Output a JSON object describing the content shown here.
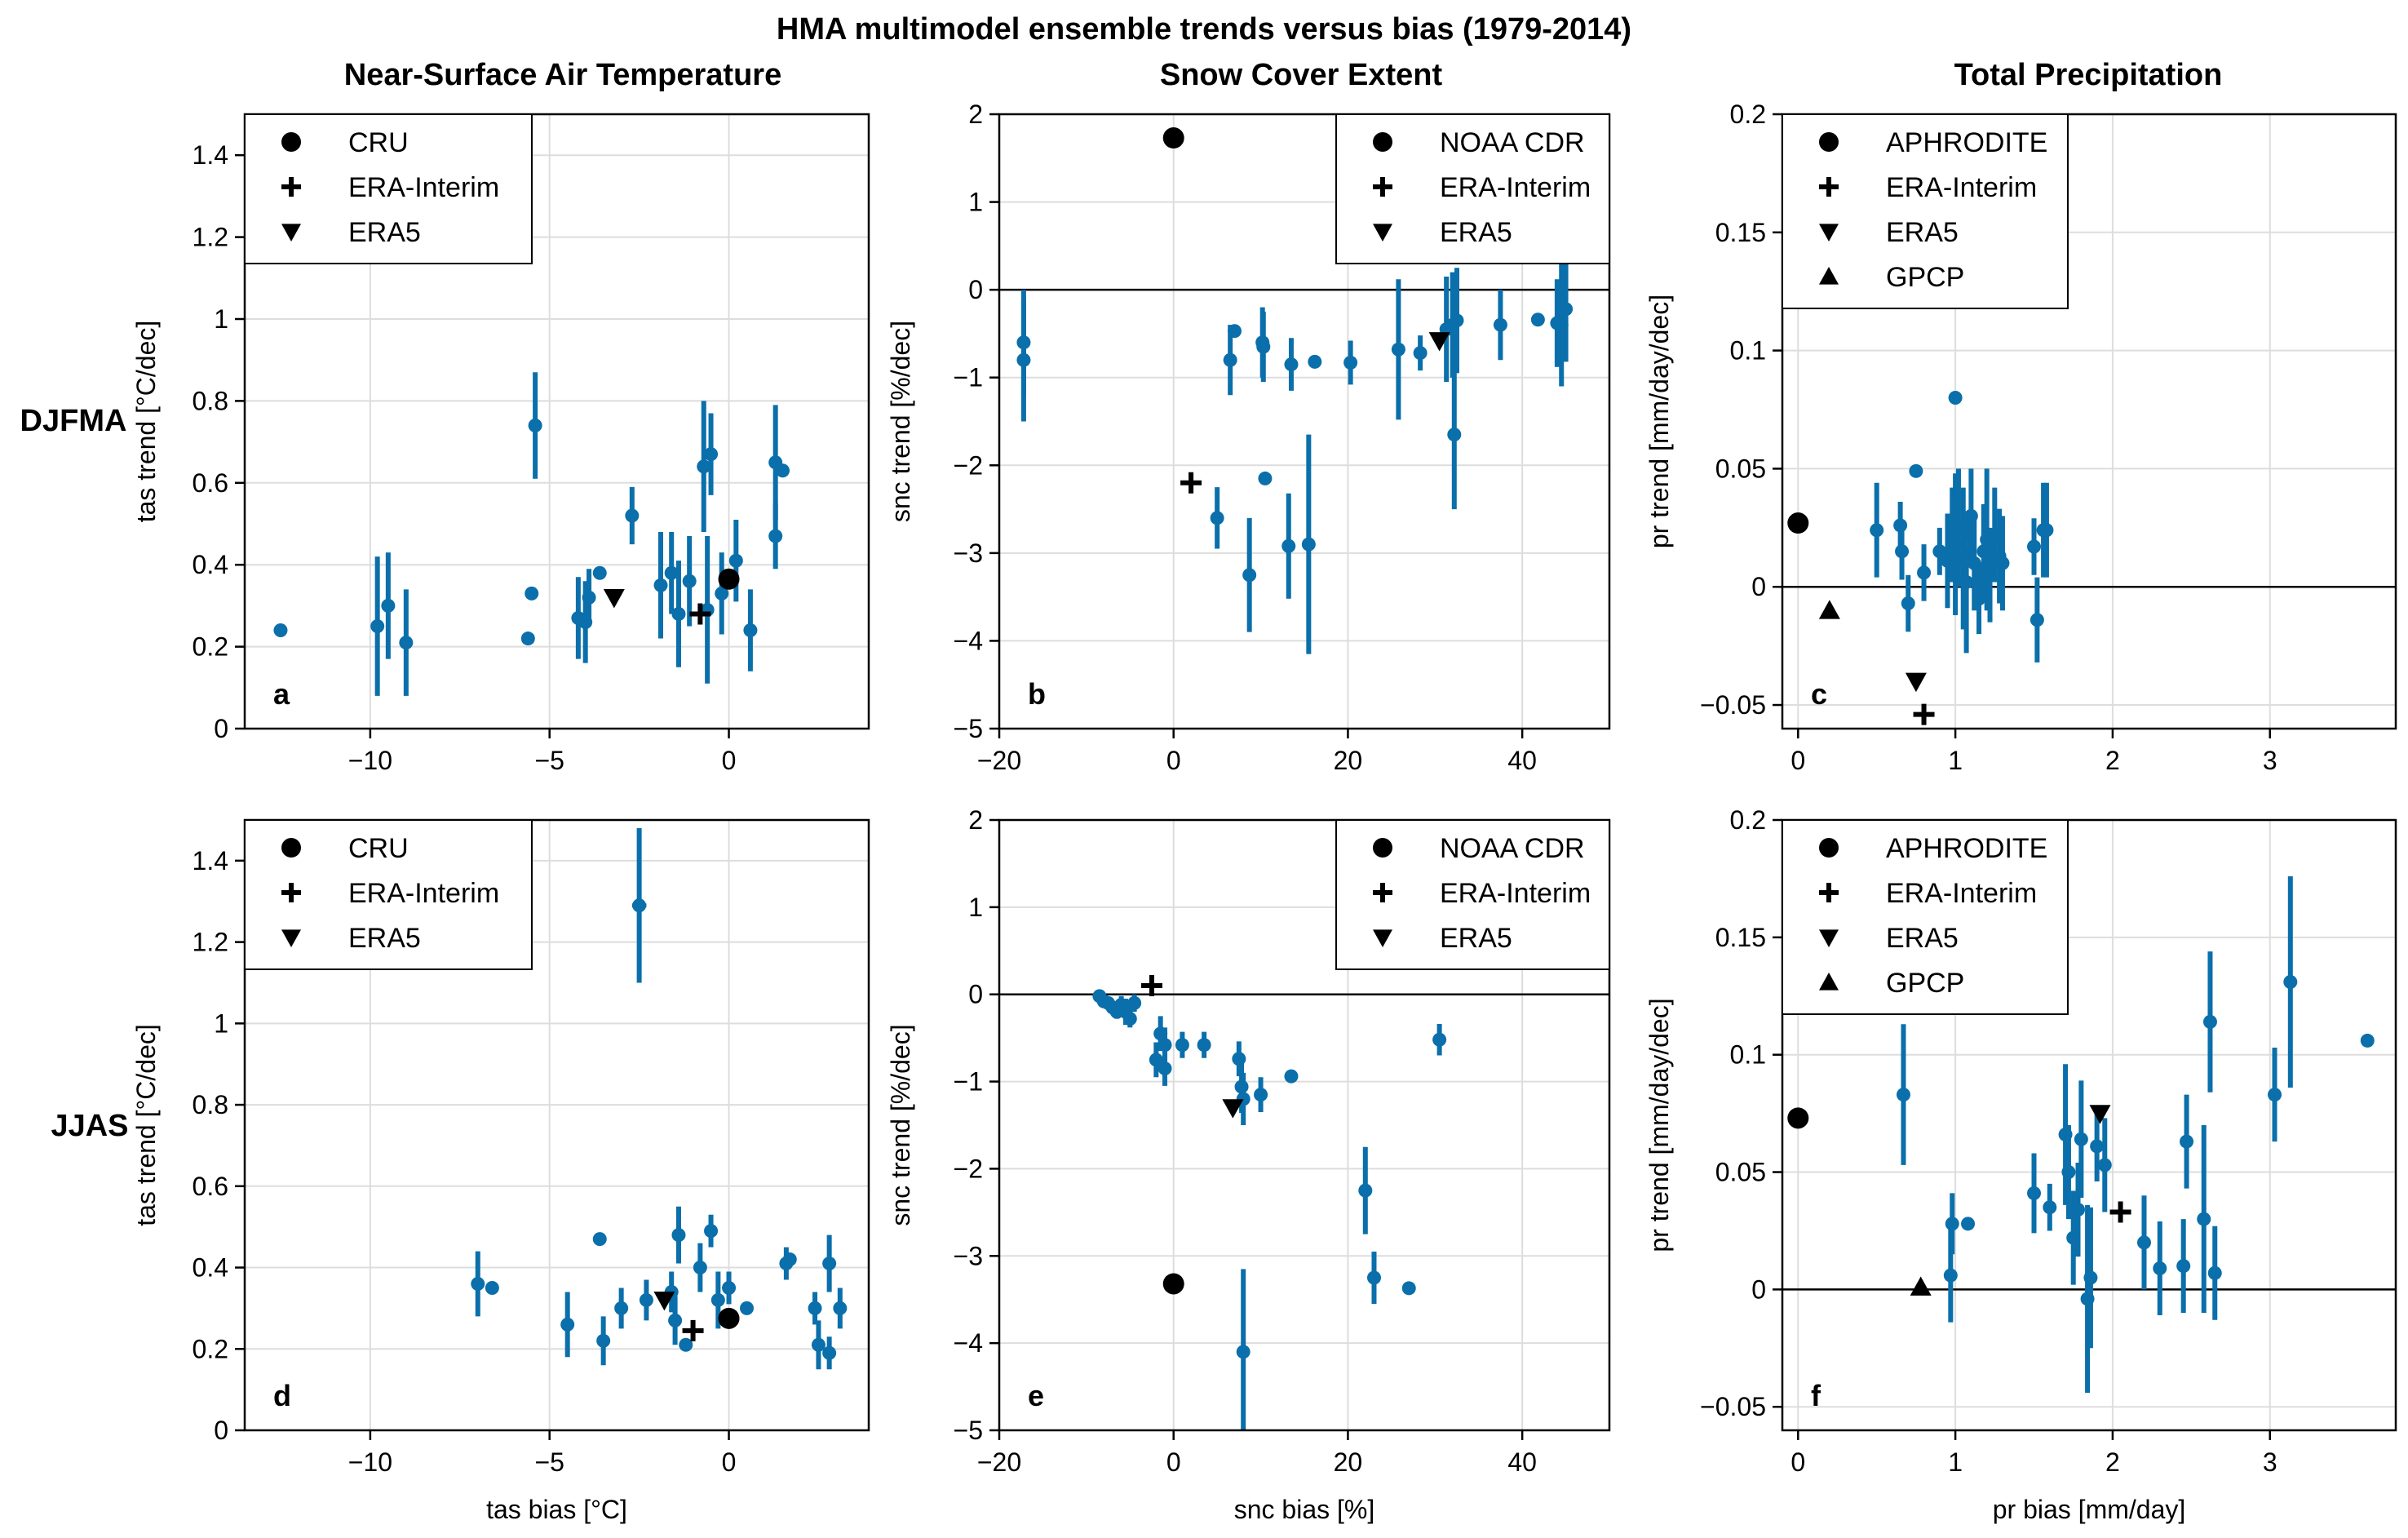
{
  "figure": {
    "title": "HMA multimodel ensemble trends versus bias (1979-2014)",
    "column_titles": [
      "Near-Surface Air Temperature",
      "Snow Cover Extent",
      "Total Precipitation"
    ],
    "row_labels": [
      "DJFMA",
      "JJAS"
    ],
    "colors": {
      "model": "#0a6faa",
      "reference": "#000000",
      "grid": "#dddddd"
    }
  },
  "chart_data": [
    {
      "type": "scatter",
      "panel": "a",
      "xlabel": "",
      "ylabel": "tas trend [°C/dec]",
      "xlim": [
        -13.5,
        3.9
      ],
      "ylim": [
        0,
        1.5
      ],
      "xticks": [
        -10,
        -5,
        0
      ],
      "xtick_labels": [
        "−10",
        "−5",
        "0"
      ],
      "yticks": [
        0,
        0.2,
        0.4,
        0.6,
        0.8,
        1,
        1.2,
        1.4
      ],
      "ytick_labels": [
        "0",
        "0.2",
        "0.4",
        "0.6",
        "0.8",
        "1",
        "1.2",
        "1.4"
      ],
      "zero_line": false,
      "legend": [
        "CRU",
        "ERA-Interim",
        "ERA5"
      ],
      "models": [
        [
          -12.5,
          0.24,
          0,
          0
        ],
        [
          -9.8,
          0.25,
          0.17,
          0
        ],
        [
          -9.5,
          0.3,
          0.13,
          0
        ],
        [
          -9.0,
          0.21,
          0.13,
          0
        ],
        [
          -5.6,
          0.22,
          0,
          0
        ],
        [
          -5.5,
          0.33,
          0,
          0
        ],
        [
          -5.4,
          0.74,
          0.13,
          0
        ],
        [
          -4.2,
          0.27,
          0.1,
          0
        ],
        [
          -4.0,
          0.26,
          0.1,
          0
        ],
        [
          -3.9,
          0.32,
          0.07,
          0
        ],
        [
          -3.6,
          0.38,
          0,
          0
        ],
        [
          -2.7,
          0.52,
          0.07,
          0
        ],
        [
          -1.9,
          0.35,
          0.13,
          0
        ],
        [
          -1.6,
          0.38,
          0.1,
          0.3
        ],
        [
          -1.4,
          0.28,
          0.13,
          0
        ],
        [
          -1.1,
          0.36,
          0.11,
          0.3
        ],
        [
          -0.7,
          0.64,
          0.16,
          0
        ],
        [
          -0.5,
          0.67,
          0.1,
          0
        ],
        [
          -0.6,
          0.29,
          0.18,
          0
        ],
        [
          -0.2,
          0.33,
          0.1,
          0.3
        ],
        [
          0.2,
          0.41,
          0.1,
          0
        ],
        [
          0.6,
          0.24,
          0.1,
          0
        ],
        [
          1.3,
          0.47,
          0.08,
          0
        ],
        [
          1.3,
          0.65,
          0.14,
          0
        ],
        [
          1.5,
          0.63,
          0,
          0
        ]
      ],
      "references": [
        {
          "name": "CRU",
          "marker": "circle",
          "x": 0.0,
          "y": 0.365
        },
        {
          "name": "ERA-Interim",
          "marker": "plus",
          "x": -0.8,
          "y": 0.28
        },
        {
          "name": "ERA5",
          "marker": "tri-down",
          "x": -3.2,
          "y": 0.32
        }
      ]
    },
    {
      "type": "scatter",
      "panel": "b",
      "xlabel": "",
      "ylabel": "snc trend [%/dec]",
      "xlim": [
        -20,
        50
      ],
      "ylim": [
        -5,
        2
      ],
      "xticks": [
        -20,
        0,
        20,
        40
      ],
      "xtick_labels": [
        "−20",
        "0",
        "20",
        "40"
      ],
      "yticks": [
        -5,
        -4,
        -3,
        -2,
        -1,
        0,
        1,
        2
      ],
      "ytick_labels": [
        "−5",
        "−4",
        "−3",
        "−2",
        "−1",
        "0",
        "1",
        "2"
      ],
      "zero_line": true,
      "legend": [
        "NOAA CDR",
        "ERA-Interim",
        "ERA5"
      ],
      "models": [
        [
          -17.2,
          -0.6,
          0.6,
          0
        ],
        [
          -17.2,
          -0.8,
          0.7,
          0
        ],
        [
          5.0,
          -2.6,
          0.35,
          0
        ],
        [
          6.5,
          -0.8,
          0.4,
          0
        ],
        [
          7.0,
          -0.47,
          0,
          0
        ],
        [
          8.7,
          -3.25,
          0.65,
          0
        ],
        [
          10.2,
          -0.6,
          0.4,
          0
        ],
        [
          10.3,
          -0.65,
          0.4,
          0
        ],
        [
          10.5,
          -2.15,
          0,
          0
        ],
        [
          13.2,
          -2.92,
          0.6,
          0
        ],
        [
          13.5,
          -0.85,
          0.3,
          0
        ],
        [
          15.5,
          -2.9,
          1.25,
          1.0
        ],
        [
          16.2,
          -0.82,
          0,
          0
        ],
        [
          20.3,
          -0.83,
          0.25,
          0
        ],
        [
          25.5,
          0.42,
          0,
          0
        ],
        [
          25.8,
          -0.68,
          0.8,
          0.8
        ],
        [
          28.3,
          -0.72,
          0.2,
          0
        ],
        [
          31.3,
          -0.45,
          0.6,
          0
        ],
        [
          32.0,
          -0.4,
          0.6,
          0
        ],
        [
          32.2,
          -1.65,
          0.85,
          0
        ],
        [
          32.5,
          -0.35,
          0.6,
          0
        ],
        [
          37.5,
          -0.4,
          0.4,
          0
        ],
        [
          41.8,
          -0.34,
          0,
          0
        ],
        [
          44.0,
          -0.38,
          0.5,
          0
        ],
        [
          44.5,
          -0.4,
          0.7,
          0
        ],
        [
          45.0,
          -0.22,
          0.6,
          0
        ]
      ],
      "references": [
        {
          "name": "NOAA CDR",
          "marker": "circle",
          "x": 0.0,
          "y": 1.73
        },
        {
          "name": "ERA-Interim",
          "marker": "plus",
          "x": 2.0,
          "y": -2.2
        },
        {
          "name": "ERA5",
          "marker": "tri-down",
          "x": 30.5,
          "y": -0.58
        }
      ]
    },
    {
      "type": "scatter",
      "panel": "c",
      "xlabel": "",
      "ylabel": "pr trend [mm/day/dec]",
      "xlim": [
        -0.1,
        3.8
      ],
      "ylim": [
        -0.06,
        0.2
      ],
      "xticks": [
        0,
        1,
        2,
        3
      ],
      "xtick_labels": [
        "0",
        "1",
        "2",
        "3"
      ],
      "yticks": [
        -0.05,
        0,
        0.05,
        0.1,
        0.15,
        0.2
      ],
      "ytick_labels": [
        "−0.05",
        "0",
        "0.05",
        "0.1",
        "0.15",
        "0.2"
      ],
      "zero_line": true,
      "legend": [
        "APHRODITE",
        "ERA-Interim",
        "ERA5",
        "GPCP"
      ],
      "models": [
        [
          0.5,
          0.024,
          0.02,
          0
        ],
        [
          0.65,
          0.026,
          0.01,
          0
        ],
        [
          0.66,
          0.015,
          0.012,
          0
        ],
        [
          0.7,
          -0.007,
          0.012,
          0
        ],
        [
          0.75,
          0.049,
          0,
          0
        ],
        [
          0.8,
          0.006,
          0.012,
          0
        ],
        [
          0.9,
          0.015,
          0.01,
          0
        ],
        [
          0.95,
          0.011,
          0.02,
          0
        ],
        [
          0.98,
          0.022,
          0.02,
          0
        ],
        [
          1.0,
          0.018,
          0.03,
          0
        ],
        [
          1.0,
          0.08,
          0,
          0
        ],
        [
          1.02,
          0.025,
          0.025,
          0
        ],
        [
          1.05,
          0.012,
          0.03,
          0
        ],
        [
          1.07,
          0.002,
          0.03,
          0
        ],
        [
          1.1,
          0.03,
          0.02,
          0
        ],
        [
          1.12,
          0.01,
          0.02,
          0
        ],
        [
          1.15,
          -0.005,
          0.015,
          0
        ],
        [
          1.18,
          0.015,
          0.02,
          0
        ],
        [
          1.2,
          0.02,
          0.03,
          0
        ],
        [
          1.22,
          0.005,
          0.02,
          0
        ],
        [
          1.25,
          0.022,
          0.02,
          0
        ],
        [
          1.28,
          0.013,
          0.02,
          0
        ],
        [
          1.3,
          0.01,
          0.02,
          0
        ],
        [
          1.5,
          0.017,
          0.012,
          0
        ],
        [
          1.52,
          -0.014,
          0.018,
          0
        ],
        [
          1.56,
          0.024,
          0.02,
          0
        ],
        [
          1.58,
          0.024,
          0.02,
          0
        ]
      ],
      "references": [
        {
          "name": "APHRODITE",
          "marker": "circle",
          "x": 0.0,
          "y": 0.027
        },
        {
          "name": "ERA-Interim",
          "marker": "plus",
          "x": 0.8,
          "y": -0.054
        },
        {
          "name": "ERA5",
          "marker": "tri-down",
          "x": 0.75,
          "y": -0.04
        },
        {
          "name": "GPCP",
          "marker": "tri-up",
          "x": 0.2,
          "y": -0.01
        }
      ]
    },
    {
      "type": "scatter",
      "panel": "d",
      "xlabel": "tas bias [°C]",
      "ylabel": "tas trend [°C/dec]",
      "xlim": [
        -13.5,
        3.9
      ],
      "ylim": [
        0,
        1.5
      ],
      "xticks": [
        -10,
        -5,
        0
      ],
      "xtick_labels": [
        "−10",
        "−5",
        "0"
      ],
      "yticks": [
        0,
        0.2,
        0.4,
        0.6,
        0.8,
        1,
        1.2,
        1.4
      ],
      "ytick_labels": [
        "0",
        "0.2",
        "0.4",
        "0.6",
        "0.8",
        "1",
        "1.2",
        "1.4"
      ],
      "zero_line": false,
      "legend": [
        "CRU",
        "ERA-Interim",
        "ERA5"
      ],
      "models": [
        [
          -7.0,
          0.36,
          0.08,
          0
        ],
        [
          -6.6,
          0.35,
          0,
          0
        ],
        [
          -2.5,
          1.29,
          0.19,
          0.4
        ],
        [
          -4.5,
          0.26,
          0.08,
          0
        ],
        [
          -3.5,
          0.22,
          0.06,
          0
        ],
        [
          -3.6,
          0.47,
          0,
          0
        ],
        [
          -3.0,
          0.3,
          0.05,
          0
        ],
        [
          -2.3,
          0.32,
          0.05,
          0
        ],
        [
          -1.6,
          0.34,
          0.05,
          0
        ],
        [
          -1.5,
          0.27,
          0.06,
          0
        ],
        [
          -1.4,
          0.48,
          0.07,
          0
        ],
        [
          -1.2,
          0.21,
          0,
          0
        ],
        [
          -0.8,
          0.4,
          0.06,
          0
        ],
        [
          -0.5,
          0.49,
          0.04,
          0
        ],
        [
          -0.3,
          0.32,
          0.07,
          0
        ],
        [
          0.0,
          0.35,
          0.04,
          0
        ],
        [
          0.5,
          0.3,
          0,
          0
        ],
        [
          1.6,
          0.41,
          0.04,
          0
        ],
        [
          1.7,
          0.42,
          0,
          0
        ],
        [
          2.4,
          0.3,
          0.04,
          0
        ],
        [
          2.5,
          0.21,
          0.06,
          0
        ],
        [
          2.8,
          0.41,
          0.07,
          0
        ],
        [
          2.8,
          0.19,
          0.04,
          0
        ],
        [
          3.1,
          0.3,
          0.05,
          0
        ]
      ],
      "references": [
        {
          "name": "CRU",
          "marker": "circle",
          "x": 0.0,
          "y": 0.275
        },
        {
          "name": "ERA-Interim",
          "marker": "plus",
          "x": -1.0,
          "y": 0.245
        },
        {
          "name": "ERA5",
          "marker": "tri-down",
          "x": -1.8,
          "y": 0.32
        }
      ]
    },
    {
      "type": "scatter",
      "panel": "e",
      "xlabel": "snc bias [%]",
      "ylabel": "snc trend [%/dec]",
      "xlim": [
        -20,
        50
      ],
      "ylim": [
        -5,
        2
      ],
      "xticks": [
        -20,
        0,
        20,
        40
      ],
      "xtick_labels": [
        "−20",
        "0",
        "20",
        "40"
      ],
      "yticks": [
        -5,
        -4,
        -3,
        -2,
        -1,
        0,
        1,
        2
      ],
      "ytick_labels": [
        "−5",
        "−4",
        "−3",
        "−2",
        "−1",
        "0",
        "1",
        "2"
      ],
      "zero_line": true,
      "legend": [
        "NOAA CDR",
        "ERA-Interim",
        "ERA5"
      ],
      "models": [
        [
          -8.5,
          -0.02,
          0,
          0
        ],
        [
          -8.0,
          -0.08,
          0.05,
          0
        ],
        [
          -7.5,
          -0.1,
          0.05,
          0
        ],
        [
          -7.0,
          -0.15,
          0.05,
          0
        ],
        [
          -6.5,
          -0.2,
          0.08,
          0
        ],
        [
          -6.0,
          -0.12,
          0.1,
          0
        ],
        [
          -5.5,
          -0.2,
          0.15,
          0
        ],
        [
          -5.0,
          -0.28,
          0.1,
          0
        ],
        [
          -4.5,
          -0.1,
          0.1,
          0
        ],
        [
          -2.0,
          -0.75,
          0.2,
          0
        ],
        [
          -1.5,
          -0.45,
          0.2,
          0
        ],
        [
          -1.0,
          -0.58,
          0.2,
          0
        ],
        [
          -1.0,
          -0.85,
          0.2,
          0
        ],
        [
          1.0,
          -0.58,
          0.15,
          0
        ],
        [
          3.5,
          -0.58,
          0.15,
          0
        ],
        [
          7.5,
          -0.74,
          0.2,
          0
        ],
        [
          7.8,
          -1.06,
          0.3,
          0
        ],
        [
          8.0,
          -1.2,
          0.3,
          0
        ],
        [
          10.0,
          -1.15,
          0.2,
          1.0
        ],
        [
          13.5,
          -0.94,
          0,
          0
        ],
        [
          8.0,
          -4.1,
          0.95,
          1.0
        ],
        [
          22.0,
          -2.25,
          0.5,
          0
        ],
        [
          23.0,
          -3.25,
          0.3,
          0.5
        ],
        [
          27.0,
          -3.37,
          0,
          0
        ],
        [
          30.5,
          -0.52,
          0.18,
          0
        ]
      ],
      "references": [
        {
          "name": "NOAA CDR",
          "marker": "circle",
          "x": 0.0,
          "y": -3.32
        },
        {
          "name": "ERA-Interim",
          "marker": "plus",
          "x": -2.5,
          "y": 0.1
        },
        {
          "name": "ERA5",
          "marker": "tri-down",
          "x": 6.8,
          "y": -1.3
        }
      ]
    },
    {
      "type": "scatter",
      "panel": "f",
      "xlabel": "pr bias [mm/day]",
      "ylabel": "pr trend [mm/day/dec]",
      "xlim": [
        -0.1,
        3.8
      ],
      "ylim": [
        -0.06,
        0.2
      ],
      "xticks": [
        0,
        1,
        2,
        3
      ],
      "xtick_labels": [
        "0",
        "1",
        "2",
        "3"
      ],
      "yticks": [
        -0.05,
        0,
        0.05,
        0.1,
        0.15,
        0.2
      ],
      "ytick_labels": [
        "−0.05",
        "0",
        "0.05",
        "0.1",
        "0.15",
        "0.2"
      ],
      "zero_line": true,
      "legend": [
        "APHRODITE",
        "ERA-Interim",
        "ERA5",
        "GPCP"
      ],
      "models": [
        [
          0.67,
          0.083,
          0.03,
          0
        ],
        [
          0.97,
          0.006,
          0.02,
          0
        ],
        [
          0.98,
          0.028,
          0.013,
          0
        ],
        [
          1.08,
          0.028,
          0,
          0
        ],
        [
          1.5,
          0.041,
          0.017,
          0
        ],
        [
          1.6,
          0.035,
          0.01,
          0
        ],
        [
          1.7,
          0.066,
          0.03,
          0
        ],
        [
          1.72,
          0.05,
          0.02,
          0
        ],
        [
          1.75,
          0.022,
          0.02,
          0
        ],
        [
          1.78,
          0.034,
          0.02,
          0
        ],
        [
          1.8,
          0.064,
          0.025,
          0
        ],
        [
          1.84,
          -0.004,
          0.04,
          0
        ],
        [
          1.86,
          0.005,
          0.03,
          0
        ],
        [
          1.9,
          0.061,
          0.015,
          0
        ],
        [
          1.95,
          0.053,
          0.02,
          0
        ],
        [
          2.2,
          0.02,
          0.02,
          0
        ],
        [
          2.3,
          0.009,
          0.02,
          0
        ],
        [
          2.45,
          0.01,
          0.02,
          0
        ],
        [
          2.47,
          0.063,
          0.02,
          0
        ],
        [
          2.58,
          0.03,
          0.04,
          0
        ],
        [
          2.62,
          0.114,
          0.03,
          0.06
        ],
        [
          2.65,
          0.007,
          0.02,
          0.06
        ],
        [
          3.03,
          0.083,
          0.02,
          0
        ],
        [
          3.13,
          0.131,
          0.045,
          0.06
        ],
        [
          3.62,
          0.106,
          0,
          0
        ]
      ],
      "references": [
        {
          "name": "APHRODITE",
          "marker": "circle",
          "x": 0.0,
          "y": 0.073
        },
        {
          "name": "ERA-Interim",
          "marker": "plus",
          "x": 2.05,
          "y": 0.033
        },
        {
          "name": "ERA5",
          "marker": "tri-down",
          "x": 1.92,
          "y": 0.075
        },
        {
          "name": "GPCP",
          "marker": "tri-up",
          "x": 0.78,
          "y": 0.001
        }
      ]
    }
  ]
}
